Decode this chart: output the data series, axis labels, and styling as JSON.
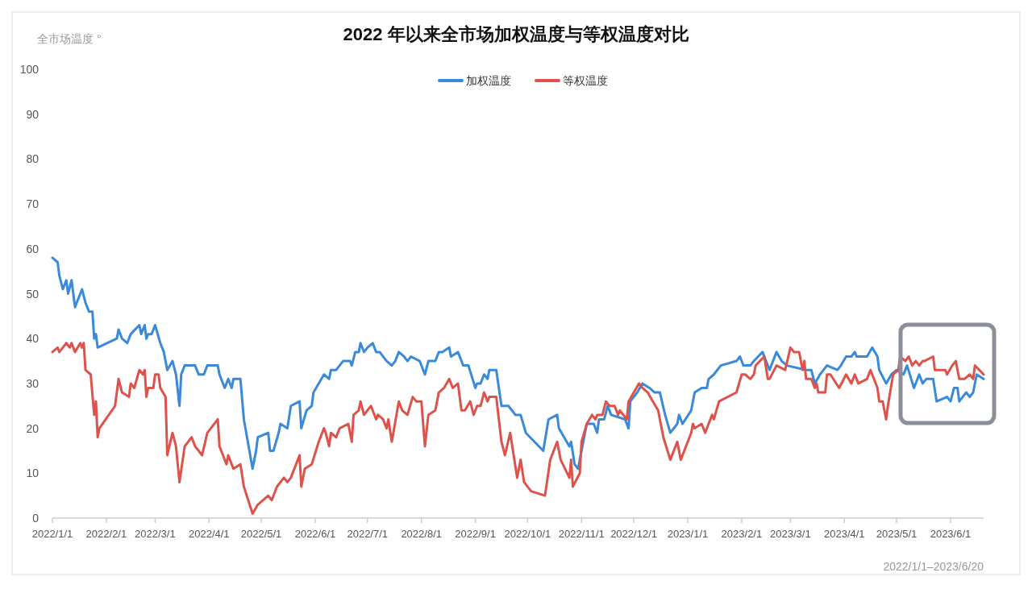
{
  "chart_data": {
    "type": "line",
    "title": "2022 年以来全市场加权温度与等权温度对比",
    "ylabel": "全市场温度 °",
    "annotations": [
      "2022/1/1–2023/6/20"
    ],
    "legend": "top",
    "grid": false,
    "marker": "none",
    "line_style": "solid",
    "xlim": [
      "2022-01-01",
      "2023-06-20"
    ],
    "xticks": [
      {
        "value": "2022-01-01",
        "label": "2022/1/1"
      },
      {
        "value": "2022-02-01",
        "label": "2022/2/1"
      },
      {
        "value": "2022-03-01",
        "label": "2022/3/1"
      },
      {
        "value": "2022-04-01",
        "label": "2022/4/1"
      },
      {
        "value": "2022-05-01",
        "label": "2022/5/1"
      },
      {
        "value": "2022-06-01",
        "label": "2022/6/1"
      },
      {
        "value": "2022-07-01",
        "label": "2022/7/1"
      },
      {
        "value": "2022-08-01",
        "label": "2022/8/1"
      },
      {
        "value": "2022-09-01",
        "label": "2022/9/1"
      },
      {
        "value": "2022-10-01",
        "label": "2022/10/1"
      },
      {
        "value": "2022-11-01",
        "label": "2022/11/1"
      },
      {
        "value": "2022-12-01",
        "label": "2022/12/1"
      },
      {
        "value": "2023-01-01",
        "label": "2023/1/1"
      },
      {
        "value": "2023-02-01",
        "label": "2023/2/1"
      },
      {
        "value": "2023-03-01",
        "label": "2023/3/1"
      },
      {
        "value": "2023-04-01",
        "label": "2023/4/1"
      },
      {
        "value": "2023-05-01",
        "label": "2023/5/1"
      },
      {
        "value": "2023-06-01",
        "label": "2023/6/1"
      }
    ],
    "ylim": [
      0,
      100
    ],
    "yticks": [
      0,
      10,
      20,
      30,
      40,
      50,
      60,
      70,
      80,
      90,
      100
    ],
    "series": [
      {
        "name": "加权温度",
        "color": "#3a8ad9",
        "x": [
          "2022-01-01",
          "2022-01-04",
          "2022-01-05",
          "2022-01-07",
          "2022-01-09",
          "2022-01-10",
          "2022-01-12",
          "2022-01-14",
          "2022-01-18",
          "2022-01-20",
          "2022-01-22",
          "2022-01-24",
          "2022-01-25",
          "2022-01-26",
          "2022-01-27",
          "2022-02-07",
          "2022-02-08",
          "2022-02-10",
          "2022-02-13",
          "2022-02-15",
          "2022-02-20",
          "2022-02-21",
          "2022-02-23",
          "2022-02-24",
          "2022-02-25",
          "2022-02-27",
          "2022-03-01",
          "2022-03-04",
          "2022-03-06",
          "2022-03-08",
          "2022-03-11",
          "2022-03-13",
          "2022-03-15",
          "2022-03-16",
          "2022-03-18",
          "2022-03-24",
          "2022-03-26",
          "2022-03-29",
          "2022-03-31",
          "2022-04-06",
          "2022-04-07",
          "2022-04-10",
          "2022-04-12",
          "2022-04-14",
          "2022-04-15",
          "2022-04-19",
          "2022-04-21",
          "2022-04-26",
          "2022-04-28",
          "2022-04-29",
          "2022-05-05",
          "2022-05-06",
          "2022-05-08",
          "2022-05-11",
          "2022-05-12",
          "2022-05-16",
          "2022-05-18",
          "2022-05-23",
          "2022-05-24",
          "2022-05-27",
          "2022-05-30",
          "2022-05-31",
          "2022-06-03",
          "2022-06-06",
          "2022-06-09",
          "2022-06-10",
          "2022-06-13",
          "2022-06-15",
          "2022-06-17",
          "2022-06-21",
          "2022-06-22",
          "2022-06-24",
          "2022-06-26",
          "2022-06-27",
          "2022-06-29",
          "2022-07-01",
          "2022-07-04",
          "2022-07-06",
          "2022-07-08",
          "2022-07-12",
          "2022-07-15",
          "2022-07-17",
          "2022-07-19",
          "2022-07-22",
          "2022-07-24",
          "2022-07-26",
          "2022-07-31",
          "2022-08-03",
          "2022-08-05",
          "2022-08-09",
          "2022-08-11",
          "2022-08-13",
          "2022-08-17",
          "2022-08-18",
          "2022-08-22",
          "2022-08-24",
          "2022-08-25",
          "2022-08-28",
          "2022-09-01",
          "2022-09-02",
          "2022-09-04",
          "2022-09-06",
          "2022-09-08",
          "2022-09-09",
          "2022-09-13",
          "2022-09-16",
          "2022-09-20",
          "2022-09-24",
          "2022-09-27",
          "2022-09-30",
          "2022-10-10",
          "2022-10-13",
          "2022-10-18",
          "2022-10-19",
          "2022-10-25",
          "2022-10-26",
          "2022-10-28",
          "2022-10-30",
          "2022-11-01",
          "2022-11-04",
          "2022-11-08",
          "2022-11-10",
          "2022-11-11",
          "2022-11-14",
          "2022-11-16",
          "2022-11-18",
          "2022-11-26",
          "2022-11-28",
          "2022-11-29",
          "2022-12-03",
          "2022-12-06",
          "2022-12-10",
          "2022-12-13",
          "2022-12-16",
          "2022-12-19",
          "2022-12-22",
          "2022-12-26",
          "2022-12-27",
          "2022-12-29",
          "2023-01-03",
          "2023-01-05",
          "2023-01-09",
          "2023-01-12",
          "2023-01-13",
          "2023-01-16",
          "2023-01-20",
          "2023-01-29",
          "2023-01-31",
          "2023-02-02",
          "2023-02-06",
          "2023-02-08",
          "2023-02-13",
          "2023-02-17",
          "2023-02-21",
          "2023-02-24",
          "2023-02-27",
          "2023-03-10",
          "2023-03-13",
          "2023-03-15",
          "2023-03-18",
          "2023-03-22",
          "2023-03-28",
          "2023-03-30",
          "2023-04-02",
          "2023-04-05",
          "2023-04-07",
          "2023-04-08",
          "2023-04-14",
          "2023-04-17",
          "2023-04-20",
          "2023-04-21",
          "2023-04-25",
          "2023-04-28",
          "2023-05-01",
          "2023-05-05",
          "2023-05-07",
          "2023-05-11",
          "2023-05-14",
          "2023-05-16",
          "2023-05-18",
          "2023-05-22",
          "2023-05-24",
          "2023-05-30",
          "2023-06-01",
          "2023-06-03",
          "2023-06-05",
          "2023-06-06",
          "2023-06-10",
          "2023-06-12",
          "2023-06-14",
          "2023-06-16",
          "2023-06-20"
        ],
        "values": [
          58,
          57,
          54,
          51,
          53,
          50,
          53,
          47,
          51,
          48,
          46,
          46,
          40,
          41,
          38,
          40,
          42,
          40,
          39,
          41,
          43,
          41,
          43,
          40,
          41,
          41,
          43,
          39,
          37,
          33,
          35,
          32,
          25,
          32,
          34,
          34,
          32,
          32,
          34,
          34,
          32,
          29,
          31,
          29,
          31,
          31,
          22,
          11,
          15,
          18,
          19,
          15,
          15,
          19,
          21,
          20,
          25,
          26,
          20,
          24,
          25,
          28,
          30,
          32,
          31,
          33,
          33,
          34,
          35,
          35,
          34,
          37,
          37,
          39,
          37,
          38,
          39,
          37,
          37,
          35,
          34,
          35,
          37,
          36,
          35,
          36,
          35,
          32,
          35,
          35,
          37,
          37,
          38,
          36,
          37,
          35,
          34,
          34,
          29,
          30,
          30,
          32,
          31,
          33,
          33,
          25,
          25,
          23,
          23,
          19,
          15,
          22,
          23,
          20,
          16,
          17,
          12,
          11,
          15,
          21,
          21,
          19,
          22,
          22,
          25,
          23,
          22,
          20,
          26,
          28,
          30,
          29,
          28,
          28,
          23,
          19,
          21,
          23,
          21,
          24,
          28,
          29,
          29,
          31,
          32,
          34,
          35,
          36,
          34,
          34,
          35,
          37,
          33,
          37,
          35,
          34,
          33,
          33,
          30,
          32,
          34,
          33,
          34,
          36,
          36,
          37,
          36,
          36,
          38,
          36,
          33,
          30,
          32,
          33,
          32,
          34,
          29,
          32,
          30,
          31,
          31,
          26,
          27,
          26,
          29,
          29,
          26,
          28,
          27,
          28,
          32,
          31
        ]
      },
      {
        "name": "等权温度",
        "color": "#dd534b",
        "x": [
          "2022-01-01",
          "2022-01-04",
          "2022-01-05",
          "2022-01-07",
          "2022-01-09",
          "2022-01-11",
          "2022-01-12",
          "2022-01-14",
          "2022-01-17",
          "2022-01-18",
          "2022-01-19",
          "2022-01-20",
          "2022-01-23",
          "2022-01-25",
          "2022-01-26",
          "2022-01-27",
          "2022-01-28",
          "2022-02-06",
          "2022-02-08",
          "2022-02-10",
          "2022-02-14",
          "2022-02-15",
          "2022-02-17",
          "2022-02-20",
          "2022-02-22",
          "2022-02-23",
          "2022-02-24",
          "2022-02-25",
          "2022-02-28",
          "2022-03-01",
          "2022-03-03",
          "2022-03-04",
          "2022-03-07",
          "2022-03-08",
          "2022-03-11",
          "2022-03-13",
          "2022-03-15",
          "2022-03-18",
          "2022-03-22",
          "2022-03-24",
          "2022-03-28",
          "2022-03-31",
          "2022-04-06",
          "2022-04-07",
          "2022-04-09",
          "2022-04-11",
          "2022-04-12",
          "2022-04-14",
          "2022-04-15",
          "2022-04-19",
          "2022-04-21",
          "2022-04-26",
          "2022-04-29",
          "2022-05-05",
          "2022-05-07",
          "2022-05-10",
          "2022-05-14",
          "2022-05-16",
          "2022-05-18",
          "2022-05-23",
          "2022-05-24",
          "2022-05-26",
          "2022-05-30",
          "2022-06-03",
          "2022-06-06",
          "2022-06-07",
          "2022-06-09",
          "2022-06-10",
          "2022-06-13",
          "2022-06-15",
          "2022-06-20",
          "2022-06-22",
          "2022-06-23",
          "2022-06-26",
          "2022-06-27",
          "2022-06-29",
          "2022-07-03",
          "2022-07-06",
          "2022-07-07",
          "2022-07-10",
          "2022-07-12",
          "2022-07-13",
          "2022-07-15",
          "2022-07-19",
          "2022-07-21",
          "2022-07-24",
          "2022-07-27",
          "2022-07-29",
          "2022-08-01",
          "2022-08-03",
          "2022-08-05",
          "2022-08-09",
          "2022-08-11",
          "2022-08-14",
          "2022-08-17",
          "2022-08-19",
          "2022-08-22",
          "2022-08-24",
          "2022-08-26",
          "2022-08-29",
          "2022-08-31",
          "2022-09-02",
          "2022-09-04",
          "2022-09-06",
          "2022-09-08",
          "2022-09-09",
          "2022-09-13",
          "2022-09-16",
          "2022-09-18",
          "2022-09-21",
          "2022-09-23",
          "2022-09-25",
          "2022-09-27",
          "2022-09-29",
          "2022-10-03",
          "2022-10-11",
          "2022-10-14",
          "2022-10-18",
          "2022-10-20",
          "2022-10-25",
          "2022-10-26",
          "2022-10-27",
          "2022-10-31",
          "2022-11-01",
          "2022-11-04",
          "2022-11-07",
          "2022-11-09",
          "2022-11-10",
          "2022-11-13",
          "2022-11-15",
          "2022-11-17",
          "2022-11-20",
          "2022-11-22",
          "2022-11-23",
          "2022-11-27",
          "2022-11-28",
          "2022-12-04",
          "2022-12-06",
          "2022-12-09",
          "2022-12-12",
          "2022-12-15",
          "2022-12-18",
          "2022-12-22",
          "2022-12-26",
          "2022-12-28",
          "2023-01-03",
          "2023-01-04",
          "2023-01-05",
          "2023-01-09",
          "2023-01-11",
          "2023-01-15",
          "2023-01-16",
          "2023-01-19",
          "2023-01-29",
          "2023-02-01",
          "2023-02-03",
          "2023-02-06",
          "2023-02-08",
          "2023-02-09",
          "2023-02-14",
          "2023-02-16",
          "2023-02-17",
          "2023-02-21",
          "2023-02-26",
          "2023-03-01",
          "2023-03-03",
          "2023-03-06",
          "2023-03-08",
          "2023-03-09",
          "2023-03-10",
          "2023-03-13",
          "2023-03-15",
          "2023-03-16",
          "2023-03-17",
          "2023-03-21",
          "2023-03-22",
          "2023-03-24",
          "2023-03-29",
          "2023-04-02",
          "2023-04-05",
          "2023-04-07",
          "2023-04-09",
          "2023-04-14",
          "2023-04-16",
          "2023-04-20",
          "2023-04-21",
          "2023-04-23",
          "2023-04-25",
          "2023-04-26",
          "2023-04-29",
          "2023-05-02",
          "2023-05-03",
          "2023-05-06",
          "2023-05-08",
          "2023-05-10",
          "2023-05-12",
          "2023-05-14",
          "2023-05-16",
          "2023-05-17",
          "2023-05-22",
          "2023-05-23",
          "2023-05-29",
          "2023-05-30",
          "2023-06-02",
          "2023-06-04",
          "2023-06-06",
          "2023-06-09",
          "2023-06-12",
          "2023-06-14",
          "2023-06-15",
          "2023-06-20"
        ],
        "values": [
          37,
          38,
          37,
          38,
          39,
          38,
          39,
          37,
          39,
          38,
          39,
          33,
          32,
          23,
          26,
          18,
          20,
          25,
          31,
          28,
          27,
          30,
          29,
          33,
          32,
          33,
          27,
          29,
          29,
          32,
          32,
          29,
          27,
          14,
          19,
          16,
          8,
          16,
          18,
          16,
          14,
          19,
          22,
          16,
          14,
          12,
          14,
          12,
          11,
          12,
          7,
          1,
          3,
          5,
          4,
          7,
          9,
          8,
          9,
          14,
          7,
          11,
          12,
          17,
          20,
          19,
          16,
          19,
          18,
          20,
          21,
          17,
          23,
          24,
          26,
          23,
          25,
          22,
          23,
          22,
          20,
          22,
          17,
          26,
          24,
          23,
          27,
          26,
          26,
          16,
          23,
          24,
          28,
          29,
          31,
          29,
          30,
          24,
          24,
          26,
          23,
          25,
          25,
          28,
          26,
          27,
          27,
          17,
          14,
          19,
          14,
          9,
          13,
          8,
          6,
          5,
          13,
          17,
          13,
          9,
          13,
          7,
          10,
          17,
          21,
          23,
          22,
          23,
          23,
          26,
          25,
          25,
          23,
          24,
          22,
          26,
          30,
          29,
          28,
          26,
          24,
          18,
          13,
          17,
          13,
          19,
          21,
          20,
          21,
          19,
          23,
          22,
          26,
          28,
          32,
          32,
          31,
          32,
          34,
          36,
          31,
          31,
          34,
          33,
          38,
          37,
          37,
          33,
          35,
          31,
          31,
          29,
          30,
          28,
          28,
          32,
          32,
          29,
          32,
          30,
          32,
          30,
          31,
          33,
          29,
          26,
          26,
          22,
          25,
          32,
          33,
          36,
          35,
          36,
          34,
          35,
          34,
          35,
          35,
          36,
          33,
          33,
          32,
          34,
          35,
          31,
          31,
          32,
          31,
          34,
          32
        ]
      }
    ]
  }
}
